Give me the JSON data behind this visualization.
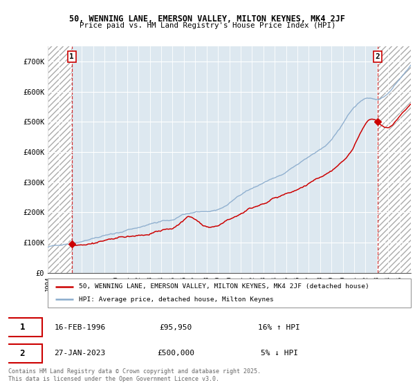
{
  "title1": "50, WENNING LANE, EMERSON VALLEY, MILTON KEYNES, MK4 2JF",
  "title2": "Price paid vs. HM Land Registry's House Price Index (HPI)",
  "sale1_date": "16-FEB-1996",
  "sale1_price": 95950,
  "sale1_year": 1996.12,
  "sale1_hpi": "16% ↑ HPI",
  "sale2_date": "27-JAN-2023",
  "sale2_price": 500000,
  "sale2_year": 2023.07,
  "sale2_hpi": "5% ↓ HPI",
  "legend1": "50, WENNING LANE, EMERSON VALLEY, MILTON KEYNES, MK4 2JF (detached house)",
  "legend2": "HPI: Average price, detached house, Milton Keynes",
  "footer": "Contains HM Land Registry data © Crown copyright and database right 2025.\nThis data is licensed under the Open Government Licence v3.0.",
  "line_color_red": "#cc0000",
  "line_color_blue": "#88aacc",
  "bg_hatch_color": "#cccccc",
  "bg_plot_color": "#dde8f0",
  "ylim_max": 750000,
  "xmin": 1994,
  "xmax": 2026
}
